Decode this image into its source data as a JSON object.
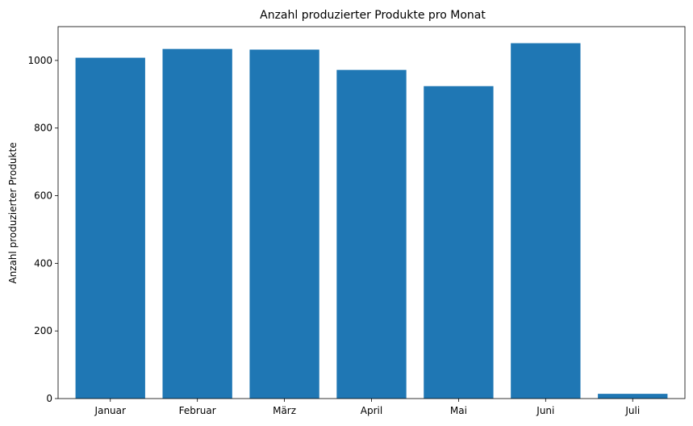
{
  "chart_data": {
    "type": "bar",
    "title": "Anzahl produzierter Produkte pro Monat",
    "xlabel": "",
    "ylabel": "Anzahl produzierter Produkte",
    "categories": [
      "Januar",
      "Februar",
      "März",
      "April",
      "Mai",
      "Juni",
      "Juli"
    ],
    "values": [
      1008,
      1034,
      1032,
      972,
      924,
      1051,
      14
    ],
    "ylim": [
      0,
      1100
    ],
    "yticks": [
      0,
      200,
      400,
      600,
      800,
      1000
    ],
    "grid": false,
    "legend": "none",
    "bar_color": "#1f77b4"
  }
}
